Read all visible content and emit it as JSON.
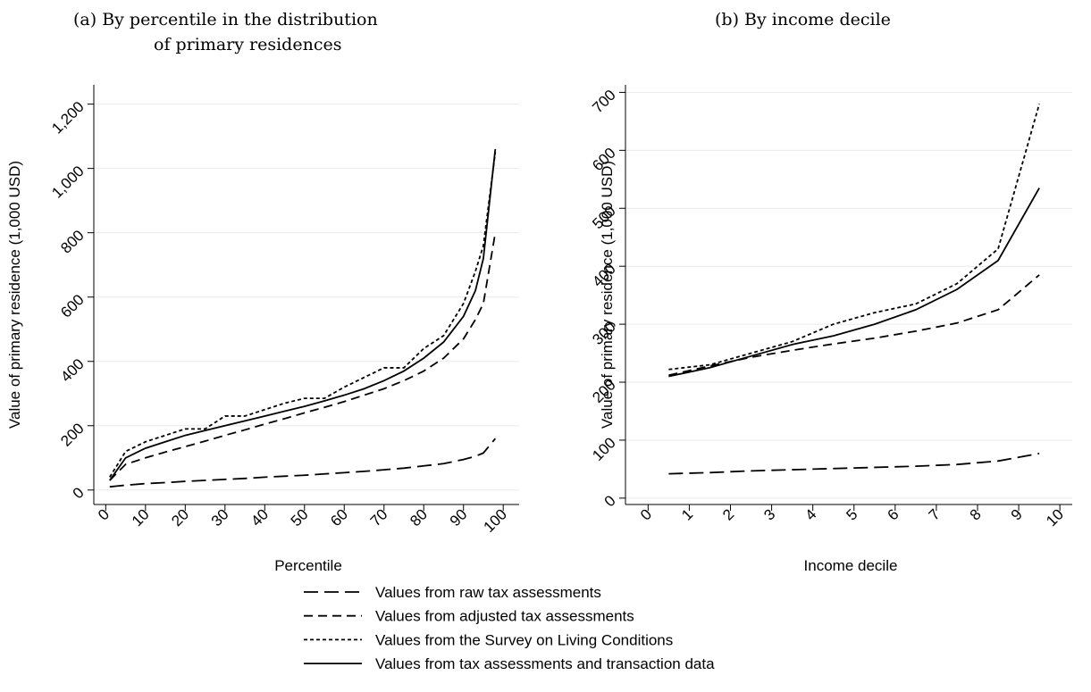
{
  "chart_data": [
    {
      "type": "line",
      "title": [
        "(a) By percentile in the distribution",
        "of primary residences"
      ],
      "x_label": "Percentile",
      "y_label": "Value of primary residence (1,000 USD)",
      "legend": "bottom",
      "grid": true,
      "xlim": [
        -3,
        104
      ],
      "xticks": [
        0,
        10,
        20,
        30,
        40,
        50,
        60,
        70,
        80,
        90,
        100
      ],
      "ylim": [
        -45,
        1260
      ],
      "yticks": [
        0,
        200,
        400,
        600,
        800,
        {
          "value": 1000,
          "label": "1,000"
        },
        {
          "value": 1200,
          "label": "1,200"
        }
      ],
      "x": [
        1,
        5,
        10,
        15,
        20,
        25,
        30,
        35,
        40,
        45,
        50,
        55,
        60,
        65,
        70,
        75,
        80,
        85,
        90,
        93,
        95,
        98
      ],
      "series": [
        {
          "name": "Values from raw tax assessments",
          "color": "#000000",
          "dash": "long",
          "values": [
            10,
            15,
            20,
            23,
            27,
            30,
            33,
            36,
            40,
            43,
            46,
            50,
            54,
            58,
            63,
            68,
            75,
            82,
            95,
            105,
            115,
            160
          ]
        },
        {
          "name": "Values from adjusted tax assessments",
          "color": "#000000",
          "dash": "medium",
          "values": [
            30,
            80,
            100,
            118,
            135,
            152,
            170,
            187,
            205,
            222,
            240,
            257,
            275,
            295,
            315,
            340,
            370,
            410,
            470,
            530,
            580,
            800
          ]
        },
        {
          "name": "Values from the Survey on Living Conditions",
          "color": "#000000",
          "dash": "short",
          "values": [
            40,
            120,
            150,
            170,
            190,
            190,
            230,
            230,
            250,
            270,
            285,
            285,
            320,
            350,
            380,
            380,
            440,
            480,
            580,
            680,
            760,
            1050
          ]
        },
        {
          "name": "Values from tax assessments and transaction data",
          "color": "#000000",
          "dash": "solid",
          "values": [
            30,
            100,
            130,
            150,
            170,
            185,
            200,
            215,
            230,
            245,
            260,
            277,
            295,
            315,
            340,
            370,
            410,
            460,
            540,
            620,
            720,
            1060
          ]
        }
      ]
    },
    {
      "type": "line",
      "title": [
        "(b) By income decile"
      ],
      "x_label": "Income decile",
      "y_label": "Value of primary residence (1,000 USD)",
      "grid": true,
      "xlim": [
        -0.55,
        10.3
      ],
      "xticks": [
        0,
        1,
        2,
        3,
        4,
        5,
        6,
        7,
        8,
        9,
        10
      ],
      "ylim": [
        -11,
        713
      ],
      "yticks": [
        0,
        100,
        200,
        300,
        400,
        500,
        600,
        700
      ],
      "x": [
        0.5,
        1.5,
        2.5,
        3.5,
        4.5,
        5.5,
        6.5,
        7.5,
        8.5,
        9.5
      ],
      "series": [
        {
          "color": "#000000",
          "dash": "long",
          "values": [
            42,
            44,
            47,
            49,
            51,
            53,
            55,
            58,
            64,
            77
          ]
        },
        {
          "color": "#000000",
          "dash": "medium",
          "values": [
            212,
            228,
            243,
            255,
            266,
            276,
            288,
            302,
            325,
            385
          ]
        },
        {
          "color": "#000000",
          "dash": "short",
          "values": [
            222,
            230,
            250,
            270,
            300,
            320,
            335,
            370,
            430,
            680
          ]
        },
        {
          "color": "#000000",
          "dash": "solid",
          "values": [
            210,
            225,
            245,
            265,
            280,
            300,
            325,
            360,
            410,
            535
          ]
        }
      ]
    }
  ]
}
